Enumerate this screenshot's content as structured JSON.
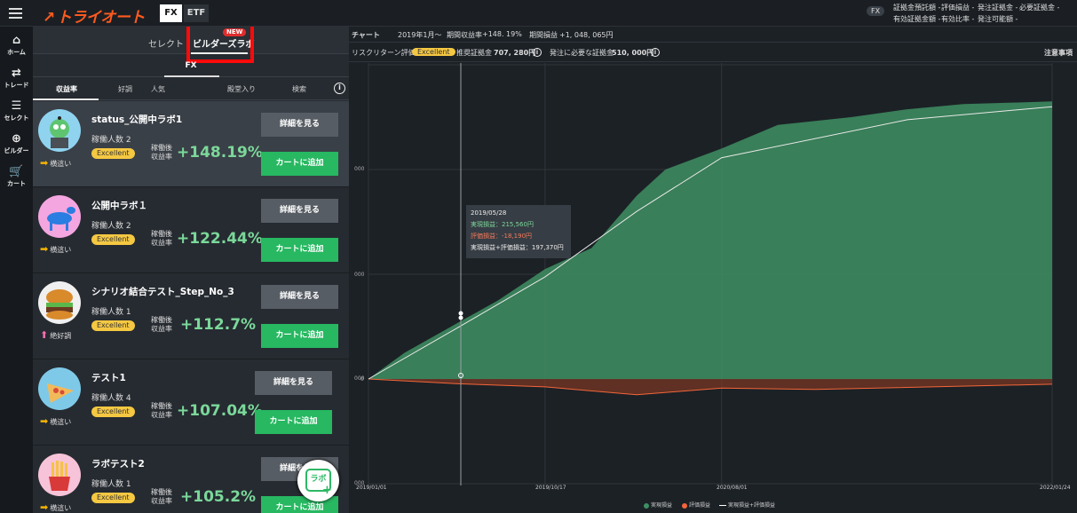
{
  "header": {
    "logo": "トライオート",
    "market_tabs": [
      "FX",
      "ETF"
    ],
    "account_badge": "FX",
    "account_col1": [
      "証拠金預託額 -",
      "有効証拠金額 -"
    ],
    "account_col2": [
      "評価損益 -",
      "有効比率 -"
    ],
    "account_col3": [
      "発注証拠金 -",
      "発注可能額 -"
    ],
    "account_col4": [
      "必要証拠金 -"
    ]
  },
  "leftnav": [
    {
      "label": "ホーム",
      "icon": "home-icon"
    },
    {
      "label": "トレード",
      "icon": "trade-icon"
    },
    {
      "label": "セレクト",
      "icon": "select-icon"
    },
    {
      "label": "ビルダー",
      "icon": "builder-icon"
    },
    {
      "label": "カート",
      "icon": "cart-icon"
    }
  ],
  "panel": {
    "subtabs": [
      "セレクト",
      "ビルダーズラボ"
    ],
    "new_badge": "NEW",
    "fx_label": "FX",
    "sort_tabs": [
      "収益率",
      "好調",
      "人気",
      "殿堂入り",
      "検索"
    ],
    "cards": [
      {
        "name": "status_公開中ラボ1",
        "count": "稼働人数 2",
        "badge": "Excellent",
        "ret_label1": "稼働後",
        "ret_label2": "収益率",
        "ret": "+148.19%",
        "trend": "横這い",
        "detail": "詳細を見る",
        "cart": "カートに追加"
      },
      {
        "name": "公開中ラボ１",
        "count": "稼働人数 2",
        "badge": "Excellent",
        "ret_label1": "稼働後",
        "ret_label2": "収益率",
        "ret": "+122.44%",
        "trend": "横這い",
        "detail": "詳細を見る",
        "cart": "カートに追加"
      },
      {
        "name": "シナリオ結合テスト_Step_No_3",
        "count": "稼働人数 1",
        "badge": "Excellent",
        "ret_label1": "稼働後",
        "ret_label2": "収益率",
        "ret": "+112.7%",
        "trend": "絶好調",
        "detail": "詳細を見る",
        "cart": "カートに追加"
      },
      {
        "name": "テスト1",
        "count": "稼働人数 4",
        "badge": "Excellent",
        "ret_label1": "稼働後",
        "ret_label2": "収益率",
        "ret": "+107.04%",
        "trend": "横這い",
        "detail": "詳細を見る",
        "cart": "カートに追加"
      },
      {
        "name": "ラボテスト2",
        "count": "稼働人数 1",
        "badge": "Excellent",
        "ret_label1": "稼働後",
        "ret_label2": "収益率",
        "ret": "+105.2%",
        "trend": "横這い",
        "detail": "詳細を見る",
        "cart": "カートに追加"
      }
    ],
    "labo_fab": "ラボ"
  },
  "chart_header": {
    "title": "チャート",
    "period": "2019年1月〜",
    "return_label": "期間収益率",
    "return_value": "+148. 19%",
    "pnl_label": "期間損益",
    "pnl_value": "+1, 048, 065円",
    "risk_label": "リスクリターン評価",
    "risk_badge": "Excellent",
    "margin_label": "推奨証拠金",
    "margin_value": "707, 280円",
    "order_margin_label": "発注に必要な証拠金",
    "order_margin_value": "510, 000円",
    "notes": "注意事項"
  },
  "tooltip": {
    "date": "2019/05/28",
    "realized": "実現損益：215,560円",
    "unrealized": "評価損益：-18,190円",
    "total": "実現損益+評価損益：197,370円"
  },
  "chart_data": {
    "type": "area",
    "x_ticks": [
      "2019/01/01",
      "2019/10/17",
      "2020/08/01",
      "2022/01/24"
    ],
    "y_ticks": [
      "000",
      "000",
      "000",
      "0",
      "000"
    ],
    "series": [
      {
        "name": "実現損益",
        "color": "#3e8f63",
        "x": [
          "2019/01/01",
          "2019/03/01",
          "2019/05/28",
          "2019/08/01",
          "2019/10/17",
          "2020/01/01",
          "2020/03/15",
          "2020/05/01",
          "2020/08/01",
          "2020/11/01",
          "2021/03/01",
          "2021/06/01",
          "2021/09/01",
          "2022/01/24"
        ],
        "values": [
          0,
          100000,
          215560,
          300000,
          420000,
          500000,
          700000,
          800000,
          880000,
          970000,
          1000000,
          1030000,
          1050000,
          1060000
        ]
      },
      {
        "name": "評価損益",
        "color": "#f4663a",
        "x": [
          "2019/01/01",
          "2019/05/28",
          "2019/10/17",
          "2020/03/15",
          "2020/08/01",
          "2021/01/01",
          "2022/01/24"
        ],
        "values": [
          0,
          -18190,
          -30000,
          -60000,
          -35000,
          -40000,
          -20000
        ]
      },
      {
        "name": "実現損益+評価損益",
        "color": "#ffffff",
        "x": [
          "2019/01/01",
          "2019/05/28",
          "2019/10/17",
          "2020/03/15",
          "2020/08/01",
          "2021/06/01",
          "2022/01/24"
        ],
        "values": [
          0,
          197370,
          390000,
          640000,
          845000,
          990000,
          1040000
        ]
      }
    ],
    "legend": [
      "実現損益",
      "評価損益",
      "実現損益+評価損益"
    ]
  }
}
